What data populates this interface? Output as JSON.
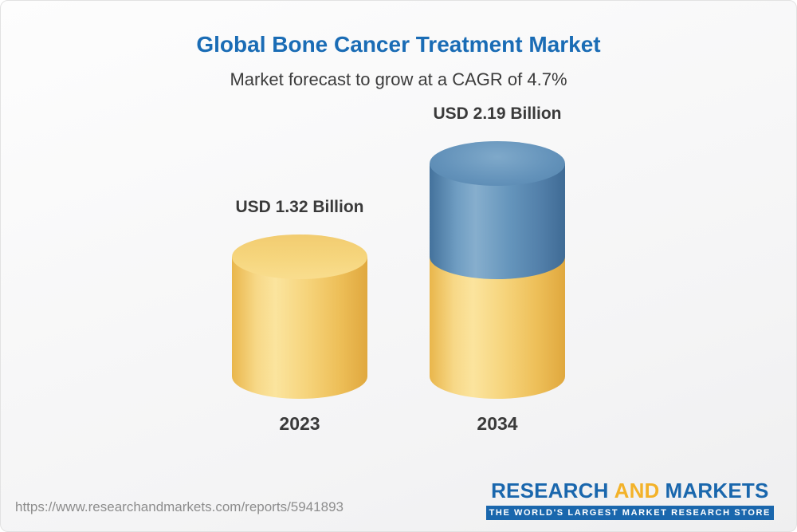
{
  "header": {
    "title": "Global Bone Cancer Treatment Market",
    "subtitle": "Market forecast to grow at a CAGR of 4.7%"
  },
  "chart_data": {
    "type": "bar",
    "style": "3d-cylinder",
    "categories": [
      "2023",
      "2034"
    ],
    "values": [
      1.32,
      2.19
    ],
    "unit": "USD Billion",
    "value_labels": [
      "USD 1.32 Billion",
      "USD 2.19 Billion"
    ],
    "cagr_percent": 4.7,
    "title": "Global Bone Cancer Treatment Market",
    "subtitle": "Market forecast to grow at a CAGR of 4.7%",
    "axes": "none",
    "legend": "none",
    "colors": {
      "bar_2023": "#F5CE68",
      "bar_2034_base": "#F5CE68",
      "bar_2034_growth": "#5588B0",
      "title_text": "#1A6CB5",
      "label_text": "#3A3A3A"
    },
    "notes": "2034 cylinder is stacked: yellow base equals 2023 value, blue top segment is forecast growth"
  },
  "footer": {
    "url": "https://www.researchandmarkets.com/reports/5941893",
    "logo": {
      "word1": "RESEARCH",
      "word2": "AND",
      "word3": "MARKETS",
      "tagline": "THE WORLD'S LARGEST MARKET RESEARCH STORE"
    }
  }
}
